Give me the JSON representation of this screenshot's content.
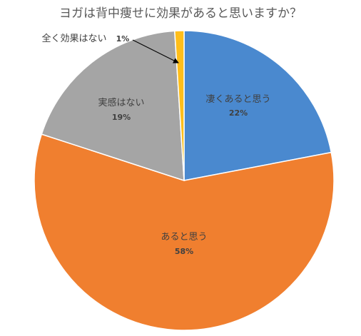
{
  "chart_data": {
    "type": "pie",
    "title": "ヨガは背中痩せに効果があると思いますか？",
    "start_angle_deg": 0,
    "direction": "clockwise",
    "slices": [
      {
        "label": "凄くあると思う",
        "value": 22,
        "value_label": "22%",
        "color": "#4A89CF"
      },
      {
        "label": "あると思う",
        "value": 58,
        "value_label": "58%",
        "color": "#F07F2F"
      },
      {
        "label": "実感はない",
        "value": 19,
        "value_label": "19%",
        "color": "#A5A5A5"
      },
      {
        "label": "全く効果はない",
        "value": 1,
        "value_label": "1%",
        "color": "#FFBE1A"
      }
    ]
  }
}
